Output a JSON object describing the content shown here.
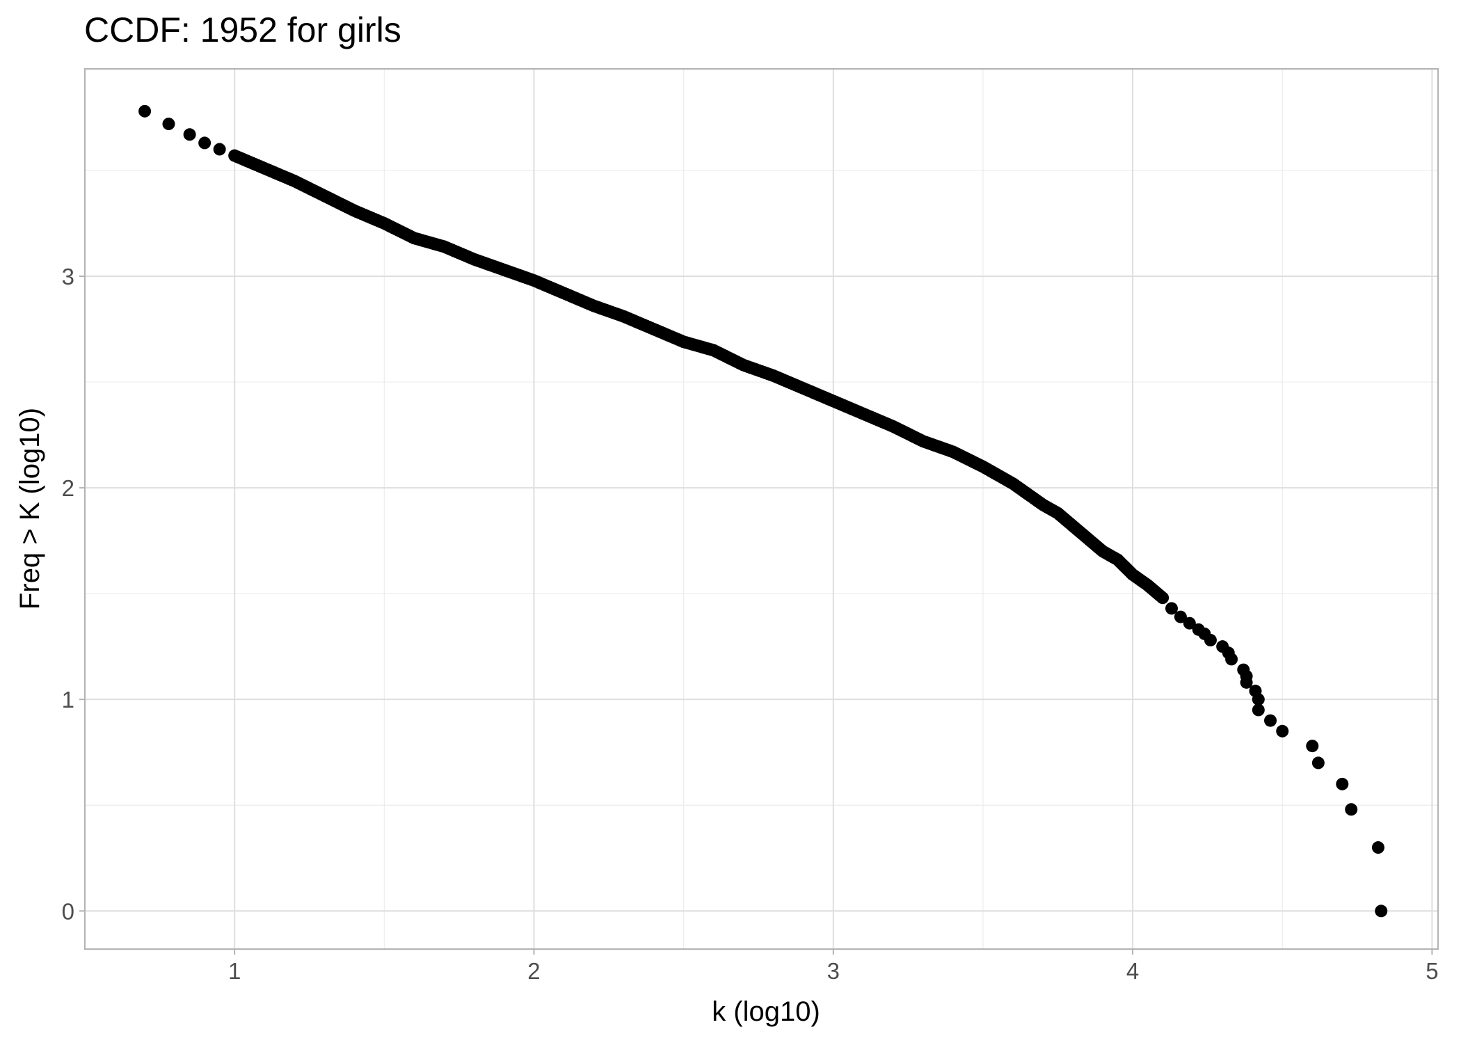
{
  "chart_data": {
    "type": "scatter",
    "title": "CCDF: 1952 for girls",
    "xlabel": "k (log10)",
    "ylabel": "Freq > K (log10)",
    "xlim": [
      0.5,
      5.02
    ],
    "ylim": [
      -0.18,
      3.98
    ],
    "x_ticks": [
      1,
      2,
      3,
      4,
      5
    ],
    "y_ticks": [
      0,
      1,
      2,
      3
    ],
    "x_tick_labels": [
      "1",
      "2",
      "3",
      "4",
      "5"
    ],
    "y_tick_labels": [
      "0",
      "1",
      "2",
      "3"
    ],
    "grid": true,
    "theme": "light",
    "point_color": "#000000",
    "curve": {
      "x": [
        0.7,
        0.78,
        0.85,
        0.9,
        0.95,
        1.0,
        1.05,
        1.1,
        1.2,
        1.3,
        1.4,
        1.5,
        1.6,
        1.7,
        1.8,
        1.9,
        2.0,
        2.1,
        2.2,
        2.3,
        2.4,
        2.5,
        2.6,
        2.7,
        2.8,
        2.9,
        3.0,
        3.1,
        3.2,
        3.3,
        3.4,
        3.5,
        3.6,
        3.65,
        3.7,
        3.75,
        3.8,
        3.85,
        3.9,
        3.95,
        4.0,
        4.05,
        4.1
      ],
      "y": [
        3.78,
        3.72,
        3.67,
        3.63,
        3.6,
        3.57,
        3.54,
        3.51,
        3.45,
        3.38,
        3.31,
        3.25,
        3.18,
        3.14,
        3.08,
        3.03,
        2.98,
        2.92,
        2.86,
        2.81,
        2.75,
        2.69,
        2.65,
        2.58,
        2.53,
        2.47,
        2.41,
        2.35,
        2.29,
        2.22,
        2.17,
        2.1,
        2.02,
        1.97,
        1.92,
        1.88,
        1.82,
        1.76,
        1.7,
        1.66,
        1.59,
        1.54,
        1.48
      ]
    },
    "points": [
      {
        "x": 4.13,
        "y": 1.43
      },
      {
        "x": 4.16,
        "y": 1.39
      },
      {
        "x": 4.19,
        "y": 1.36
      },
      {
        "x": 4.22,
        "y": 1.33
      },
      {
        "x": 4.24,
        "y": 1.31
      },
      {
        "x": 4.26,
        "y": 1.28
      },
      {
        "x": 4.3,
        "y": 1.25
      },
      {
        "x": 4.32,
        "y": 1.22
      },
      {
        "x": 4.33,
        "y": 1.19
      },
      {
        "x": 4.37,
        "y": 1.14
      },
      {
        "x": 4.38,
        "y": 1.11
      },
      {
        "x": 4.38,
        "y": 1.08
      },
      {
        "x": 4.41,
        "y": 1.04
      },
      {
        "x": 4.42,
        "y": 1.0
      },
      {
        "x": 4.42,
        "y": 0.95
      },
      {
        "x": 4.46,
        "y": 0.9
      },
      {
        "x": 4.5,
        "y": 0.85
      },
      {
        "x": 4.6,
        "y": 0.78
      },
      {
        "x": 4.62,
        "y": 0.7
      },
      {
        "x": 4.7,
        "y": 0.6
      },
      {
        "x": 4.73,
        "y": 0.48
      },
      {
        "x": 4.82,
        "y": 0.3
      },
      {
        "x": 4.83,
        "y": 0.0
      }
    ]
  }
}
